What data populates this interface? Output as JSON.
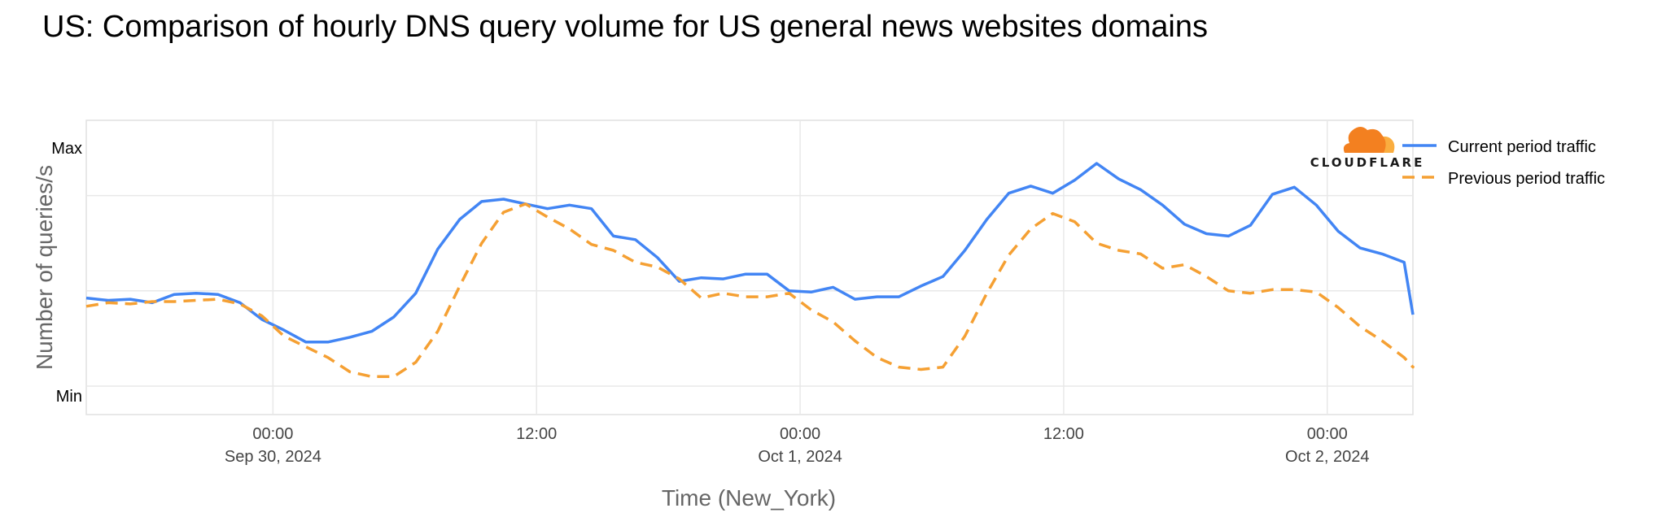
{
  "title": "US: Comparison of hourly DNS query volume for US general news websites domains",
  "brand": {
    "logo_text": "CLOUDFLARE",
    "cloud_color": "#f38020",
    "cloud_light": "#faad3f"
  },
  "colors": {
    "current": "#4285f4",
    "previous": "#f5a033",
    "grid": "#e8e8e8",
    "frame": "#e0e0e0"
  },
  "chart_data": {
    "type": "line",
    "title": "US: Comparison of hourly DNS query volume for US general news websites domains",
    "xlabel": "Time (New_York)",
    "ylabel": "Number of queries/s",
    "y_tick_labels": [
      "Max",
      "Min"
    ],
    "ylim": [
      0,
      100
    ],
    "x_range_hours": [
      -8.5,
      51.9
    ],
    "x_ticks": [
      {
        "hour": 0,
        "time": "00:00",
        "date": "Sep 30, 2024"
      },
      {
        "hour": 12,
        "time": "12:00",
        "date": ""
      },
      {
        "hour": 24,
        "time": "00:00",
        "date": "Oct 1, 2024"
      },
      {
        "hour": 36,
        "time": "12:00",
        "date": ""
      },
      {
        "hour": 48,
        "time": "00:00",
        "date": "Oct 2, 2024"
      }
    ],
    "grid": true,
    "legend_position": "right",
    "series": [
      {
        "name": "Current period traffic",
        "style": "solid",
        "x_start_hour": -8.5,
        "x_step_hours": 1,
        "values": [
          37,
          36,
          36.5,
          35,
          38.5,
          39,
          38.5,
          35,
          28,
          23.5,
          18.5,
          18.5,
          20.5,
          23,
          29,
          39,
          57.5,
          70,
          77.5,
          78.5,
          76.5,
          74.5,
          76,
          74.5,
          63,
          61.5,
          54,
          44,
          45.5,
          45,
          47,
          47,
          40,
          39.5,
          41.5,
          36.5,
          37.5,
          37.5,
          42,
          46,
          57,
          70,
          81,
          84,
          81,
          86.5,
          93.5,
          87,
          82.5,
          76,
          68,
          64,
          63,
          67.5,
          80.5,
          83.5,
          76,
          65,
          58,
          55.5,
          52,
          30
        ]
      },
      {
        "name": "Previous period traffic",
        "style": "dashed",
        "x_start_hour": -8.5,
        "x_step_hours": 1,
        "values": [
          33.5,
          35,
          34.5,
          35.5,
          35.5,
          36,
          36.5,
          34.5,
          29.5,
          21,
          16.5,
          12,
          6,
          4,
          4,
          10,
          23,
          42,
          60,
          73,
          76.5,
          71,
          66,
          59.5,
          57,
          52,
          50,
          45,
          37,
          39,
          37.5,
          37.5,
          39,
          32,
          27,
          19,
          12,
          8,
          7,
          8,
          21,
          39,
          55,
          66,
          72.5,
          69,
          60,
          57,
          55.5,
          49.5,
          51,
          46,
          40,
          39,
          40.5,
          40.5,
          39.5,
          33,
          25,
          19,
          12,
          8,
          8.5
        ]
      }
    ]
  }
}
